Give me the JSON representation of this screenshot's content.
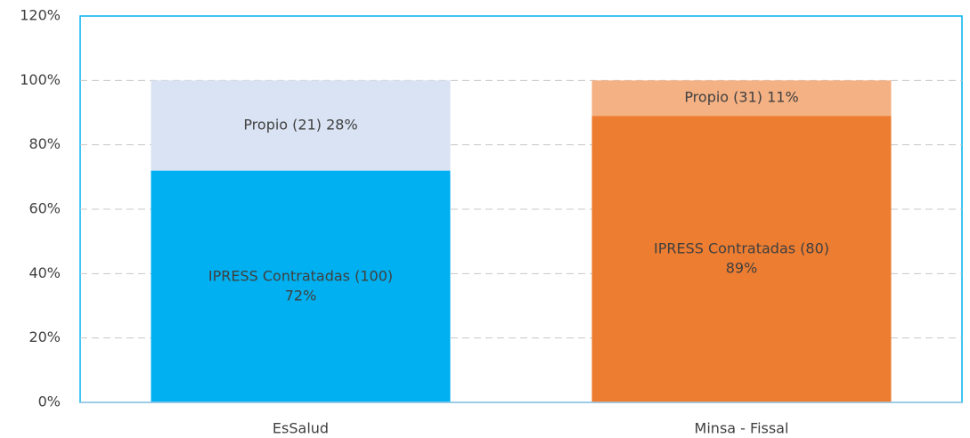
{
  "chart_data": {
    "type": "stacked-bar",
    "categories": [
      "EsSalud",
      "Minsa - Fissal"
    ],
    "series": [
      {
        "colors": [
          "#00b0f0",
          "#ed7d31"
        ],
        "values": [
          72,
          89
        ],
        "value_labels": [
          [
            "IPRESS Contratadas (100)",
            "72%"
          ],
          [
            "IPRESS Contratadas (80)",
            "89%"
          ]
        ]
      },
      {
        "colors": [
          "#dae3f3",
          "#f4b183"
        ],
        "values": [
          28,
          11
        ],
        "value_labels": [
          [
            "Propio (21) 28%"
          ],
          [
            "Propio (31) 11%"
          ]
        ]
      }
    ],
    "ylim": [
      0,
      120
    ],
    "yticks": [
      {
        "value": 0,
        "label": "0%"
      },
      {
        "value": 20,
        "label": "20%"
      },
      {
        "value": 40,
        "label": "40%"
      },
      {
        "value": 60,
        "label": "60%"
      },
      {
        "value": 80,
        "label": "80%"
      },
      {
        "value": 100,
        "label": "100%"
      },
      {
        "value": 120,
        "label": "120%"
      }
    ],
    "grid": true
  }
}
